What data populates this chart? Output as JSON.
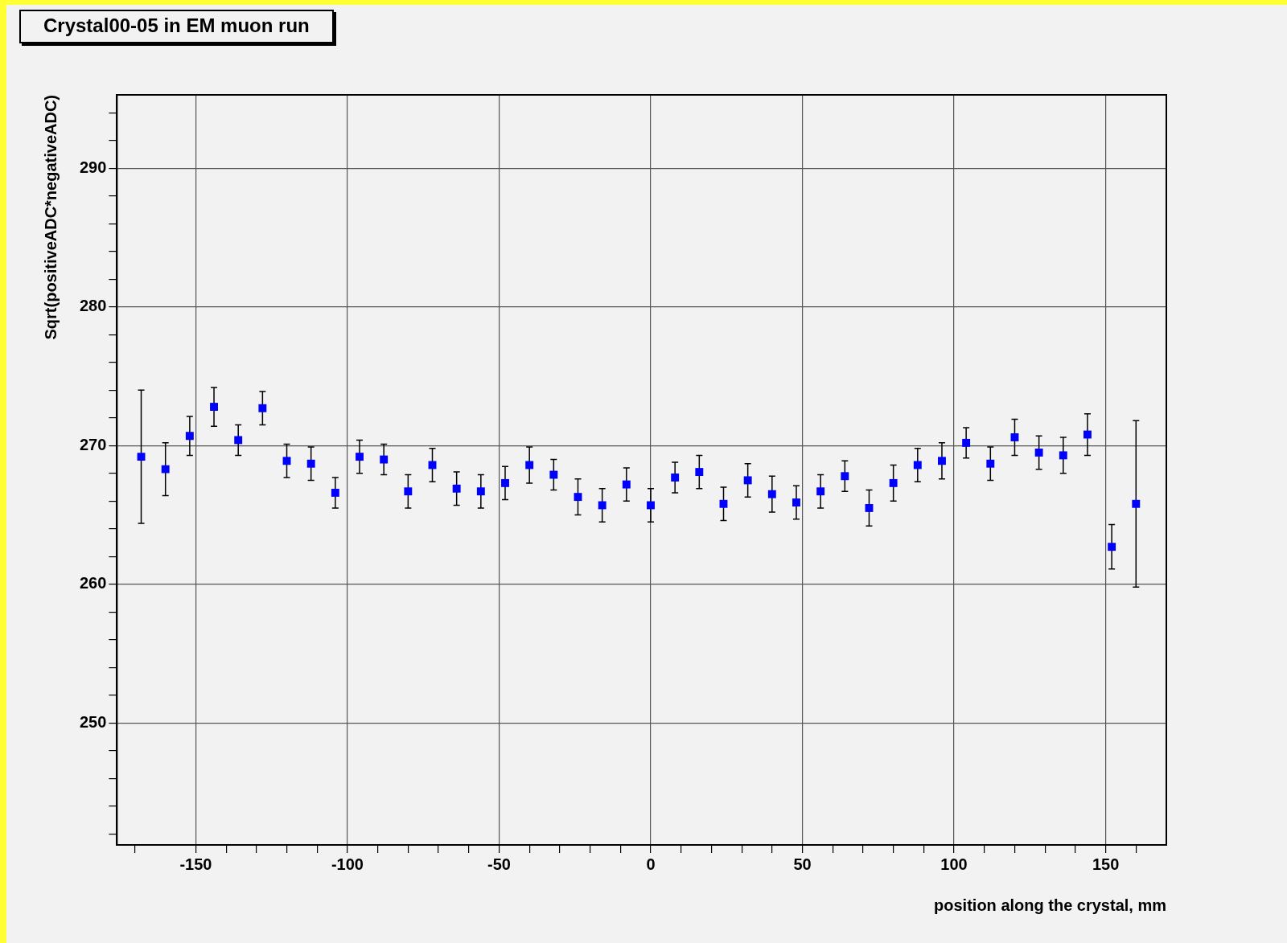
{
  "chart_data": {
    "type": "scatter",
    "title": "Crystal00-05 in EM muon run",
    "xlabel": "position along the crystal, mm",
    "ylabel": "Sqrt(positiveADC*negativeADC)",
    "x": [
      -168,
      -160,
      -152,
      -144,
      -136,
      -128,
      -120,
      -112,
      -104,
      -96,
      -88,
      -80,
      -72,
      -64,
      -56,
      -48,
      -40,
      -32,
      -24,
      -16,
      -8,
      0,
      8,
      16,
      24,
      32,
      40,
      48,
      56,
      64,
      72,
      80,
      88,
      96,
      104,
      112,
      120,
      128,
      136,
      144,
      152,
      160
    ],
    "values": [
      269.2,
      268.3,
      270.7,
      272.8,
      270.4,
      272.7,
      268.9,
      268.7,
      266.6,
      269.2,
      269.0,
      266.7,
      268.6,
      266.9,
      266.7,
      267.3,
      268.6,
      267.9,
      266.3,
      265.7,
      267.2,
      265.7,
      267.7,
      268.1,
      265.8,
      267.5,
      266.5,
      265.9,
      266.7,
      267.8,
      265.5,
      267.3,
      268.6,
      268.9,
      270.2,
      268.7,
      270.6,
      269.5,
      269.3,
      270.8,
      262.7,
      265.8
    ],
    "errors": [
      4.8,
      1.9,
      1.4,
      1.4,
      1.1,
      1.2,
      1.2,
      1.2,
      1.1,
      1.2,
      1.1,
      1.2,
      1.2,
      1.2,
      1.2,
      1.2,
      1.3,
      1.1,
      1.3,
      1.2,
      1.2,
      1.2,
      1.1,
      1.2,
      1.2,
      1.2,
      1.3,
      1.2,
      1.2,
      1.1,
      1.3,
      1.3,
      1.2,
      1.3,
      1.1,
      1.2,
      1.3,
      1.2,
      1.3,
      1.5,
      1.6,
      6.0
    ],
    "color": "#0000ff",
    "marker": "square",
    "grid": true,
    "legend": false,
    "xlim": [
      -176,
      170
    ],
    "ylim": [
      241.2,
      295.3
    ],
    "xticks": [
      {
        "value": -170,
        "label": null
      },
      -150,
      {
        "value": -140,
        "label": null
      },
      {
        "value": -130,
        "label": null
      },
      {
        "value": -120,
        "label": null
      },
      {
        "value": -110,
        "label": null
      },
      -100,
      {
        "value": -90,
        "label": null
      },
      {
        "value": -80,
        "label": null
      },
      {
        "value": -70,
        "label": null
      },
      {
        "value": -60,
        "label": null
      },
      -50,
      {
        "value": -40,
        "label": null
      },
      {
        "value": -30,
        "label": null
      },
      {
        "value": -20,
        "label": null
      },
      {
        "value": -10,
        "label": null
      },
      0,
      {
        "value": 10,
        "label": null
      },
      {
        "value": 20,
        "label": null
      },
      {
        "value": 30,
        "label": null
      },
      {
        "value": 40,
        "label": null
      },
      50,
      {
        "value": 60,
        "label": null
      },
      {
        "value": 70,
        "label": null
      },
      {
        "value": 80,
        "label": null
      },
      {
        "value": 90,
        "label": null
      },
      100,
      {
        "value": 110,
        "label": null
      },
      {
        "value": 120,
        "label": null
      },
      {
        "value": 130,
        "label": null
      },
      {
        "value": 140,
        "label": null
      },
      150,
      {
        "value": 160,
        "label": null
      }
    ],
    "yticks": [
      {
        "value": 242,
        "label": null
      },
      {
        "value": 244,
        "label": null
      },
      {
        "value": 246,
        "label": null
      },
      {
        "value": 248,
        "label": null
      },
      250,
      {
        "value": 252,
        "label": null
      },
      {
        "value": 254,
        "label": null
      },
      {
        "value": 256,
        "label": null
      },
      {
        "value": 258,
        "label": null
      },
      260,
      {
        "value": 262,
        "label": null
      },
      {
        "value": 264,
        "label": null
      },
      {
        "value": 266,
        "label": null
      },
      {
        "value": 268,
        "label": null
      },
      270,
      {
        "value": 272,
        "label": null
      },
      {
        "value": 274,
        "label": null
      },
      {
        "value": 276,
        "label": null
      },
      {
        "value": 278,
        "label": null
      },
      280,
      {
        "value": 282,
        "label": null
      },
      {
        "value": 284,
        "label": null
      },
      {
        "value": 286,
        "label": null
      },
      {
        "value": 288,
        "label": null
      },
      290,
      {
        "value": 292,
        "label": null
      },
      {
        "value": 294,
        "label": null
      }
    ]
  }
}
